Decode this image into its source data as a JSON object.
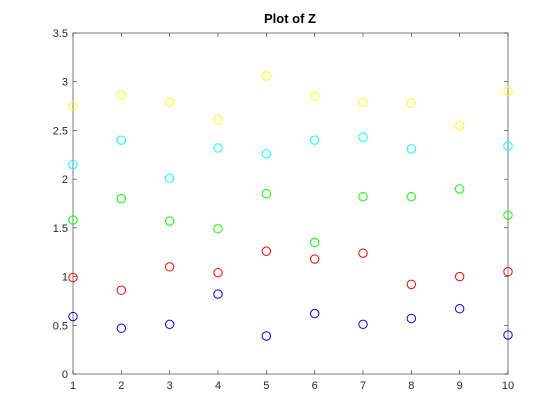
{
  "chart_data": {
    "type": "scatter",
    "title": "Plot of Z",
    "xlabel": "",
    "ylabel": "",
    "xlim": [
      1,
      10
    ],
    "ylim": [
      0,
      3.5
    ],
    "xticks": [
      1,
      2,
      3,
      4,
      5,
      6,
      7,
      8,
      9,
      10
    ],
    "yticks": [
      0,
      0.5,
      1,
      1.5,
      2,
      2.5,
      3,
      3.5
    ],
    "grid": false,
    "marker": "open-circle",
    "series": [
      {
        "color": "#0000ff",
        "x": [
          1,
          2,
          3,
          4,
          5,
          6,
          7,
          8,
          9,
          10
        ],
        "y": [
          0.59,
          0.47,
          0.51,
          0.82,
          0.39,
          0.62,
          0.51,
          0.57,
          0.67,
          0.4
        ]
      },
      {
        "color": "#ff0000",
        "x": [
          1,
          2,
          3,
          4,
          5,
          6,
          7,
          8,
          9,
          10
        ],
        "y": [
          0.99,
          0.86,
          1.1,
          1.04,
          1.26,
          1.18,
          1.24,
          0.92,
          1.0,
          1.05
        ]
      },
      {
        "color": "#00ff00",
        "x": [
          1,
          2,
          3,
          4,
          5,
          6,
          7,
          8,
          9,
          10
        ],
        "y": [
          1.58,
          1.8,
          1.57,
          1.49,
          1.85,
          1.35,
          1.82,
          1.82,
          1.9,
          1.63
        ]
      },
      {
        "color": "#00ffff",
        "x": [
          1,
          2,
          3,
          4,
          5,
          6,
          7,
          8,
          9,
          10
        ],
        "y": [
          2.15,
          2.4,
          2.01,
          2.32,
          2.26,
          2.4,
          2.43,
          2.31,
          null,
          2.34
        ]
      },
      {
        "color": "#ffff00",
        "x": [
          1,
          2,
          3,
          4,
          5,
          6,
          7,
          8,
          9,
          10
        ],
        "y": [
          2.75,
          2.86,
          2.79,
          2.61,
          3.06,
          2.85,
          2.79,
          2.78,
          2.55,
          2.9
        ]
      }
    ]
  }
}
